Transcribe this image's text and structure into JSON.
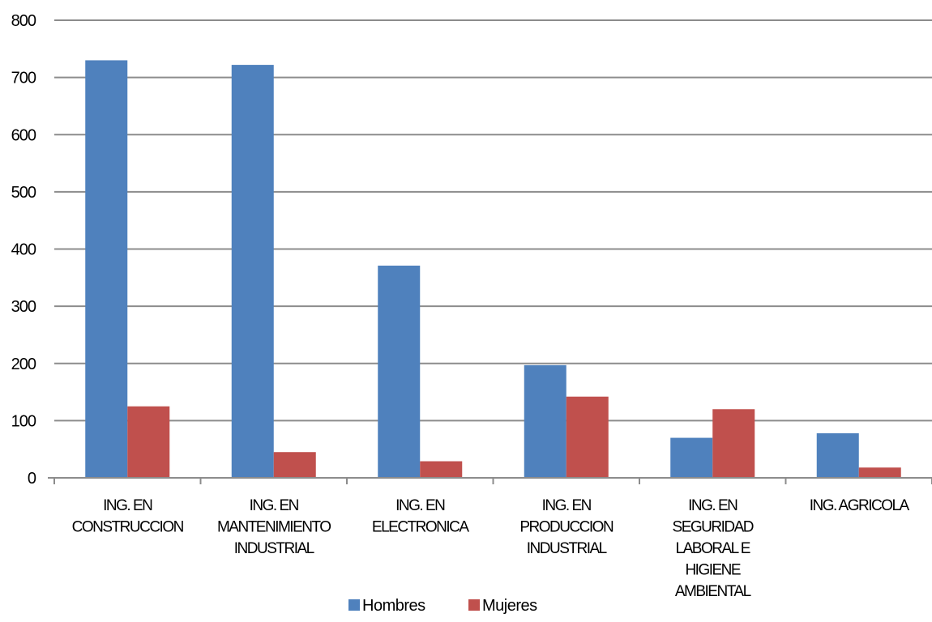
{
  "chart_data": {
    "type": "bar",
    "categories": [
      [
        "ING. EN",
        "CONSTRUCCION"
      ],
      [
        "ING. EN",
        "MANTENIMIENTO",
        "INDUSTRIAL"
      ],
      [
        "ING. EN",
        "ELECTRONICA"
      ],
      [
        "ING. EN",
        "PRODUCCION",
        "INDUSTRIAL"
      ],
      [
        "ING. EN",
        "SEGURIDAD",
        "LABORAL E",
        "HIGIENE",
        "AMBIENTAL"
      ],
      [
        "ING. AGRICOLA"
      ]
    ],
    "series": [
      {
        "name": "Hombres",
        "color": "#4f81bd",
        "values": [
          730,
          722,
          371,
          197,
          70,
          78
        ]
      },
      {
        "name": "Mujeres",
        "color": "#c0504d",
        "values": [
          125,
          45,
          29,
          142,
          120,
          18
        ]
      }
    ],
    "ylim": [
      0,
      800
    ],
    "yticks": [
      "0",
      "100",
      "200",
      "300",
      "400",
      "500",
      "600",
      "700",
      "800"
    ],
    "grid": true,
    "legend_position": "bottom"
  }
}
